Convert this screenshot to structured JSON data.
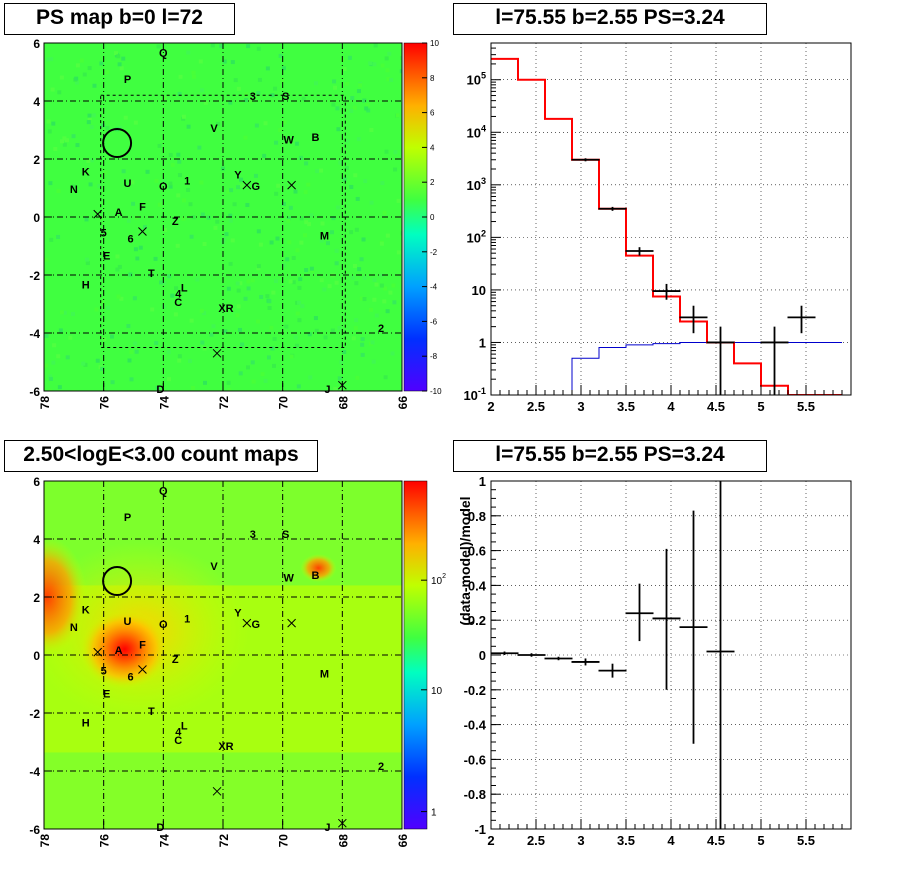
{
  "titles": {
    "map_top": "PS map b=0 l=72",
    "spec_top": "l=75.55 b=2.55 PS=3.24",
    "map_bottom": "2.50<logE<3.00 count maps",
    "ratio_bottom": "l=75.55 b=2.55 PS=3.24"
  },
  "colors": {
    "map_green": "#40ff40",
    "data": "#000000",
    "model": "#ff0000",
    "background_model": "#0000cc",
    "grid": "#000000"
  },
  "sources": [
    {
      "label": "Q",
      "l": 74.0,
      "b": 5.7
    },
    {
      "label": "P",
      "l": 75.2,
      "b": 4.8
    },
    {
      "label": "3",
      "l": 71.0,
      "b": 4.2
    },
    {
      "label": "S",
      "l": 69.9,
      "b": 4.2
    },
    {
      "label": "V",
      "l": 72.3,
      "b": 3.1
    },
    {
      "label": "W",
      "l": 69.8,
      "b": 2.7
    },
    {
      "label": "B",
      "l": 68.9,
      "b": 2.8
    },
    {
      "label": "K",
      "l": 76.6,
      "b": 1.6
    },
    {
      "label": "N",
      "l": 77.0,
      "b": 1.0
    },
    {
      "label": "U",
      "l": 75.2,
      "b": 1.2
    },
    {
      "label": "O",
      "l": 74.0,
      "b": 1.1
    },
    {
      "label": "1",
      "l": 73.2,
      "b": 1.3
    },
    {
      "label": "Y",
      "l": 71.5,
      "b": 1.5
    },
    {
      "label": "G",
      "l": 70.9,
      "b": 1.1
    },
    {
      "label": "F",
      "l": 74.7,
      "b": 0.4
    },
    {
      "label": "A",
      "l": 75.5,
      "b": 0.2
    },
    {
      "label": "Z",
      "l": 73.6,
      "b": -0.1
    },
    {
      "label": "5",
      "l": 76.0,
      "b": -0.5
    },
    {
      "label": "6",
      "l": 75.1,
      "b": -0.7
    },
    {
      "label": "M",
      "l": 68.6,
      "b": -0.6
    },
    {
      "label": "E",
      "l": 75.9,
      "b": -1.3
    },
    {
      "label": "T",
      "l": 74.4,
      "b": -1.9
    },
    {
      "label": "H",
      "l": 76.6,
      "b": -2.3
    },
    {
      "label": "4",
      "l": 73.5,
      "b": -2.6
    },
    {
      "label": "L",
      "l": 73.3,
      "b": -2.4
    },
    {
      "label": "C",
      "l": 73.5,
      "b": -2.9
    },
    {
      "label": "XR",
      "l": 71.9,
      "b": -3.1
    },
    {
      "label": "2",
      "l": 66.7,
      "b": -3.8
    },
    {
      "label": "D",
      "l": 74.1,
      "b": -5.9
    },
    {
      "label": "J",
      "l": 68.5,
      "b": -5.9
    }
  ],
  "crosses": [
    {
      "l": 76.2,
      "b": 0.1
    },
    {
      "l": 74.7,
      "b": -0.5
    },
    {
      "l": 71.2,
      "b": 1.1
    },
    {
      "l": 69.7,
      "b": 1.1
    },
    {
      "l": 72.2,
      "b": -4.7
    },
    {
      "l": 68.0,
      "b": -5.8
    }
  ],
  "circle": {
    "l": 75.55,
    "b": 2.55
  },
  "map_axes": {
    "x_ticks": [
      "78",
      "76",
      "74",
      "72",
      "70",
      "68",
      "66"
    ],
    "y_ticks": [
      "6",
      "4",
      "2",
      "0",
      "-2",
      "-4",
      "-6"
    ]
  },
  "colorbar_top": {
    "range": [
      -10,
      10
    ],
    "ticks": [
      "10",
      "8",
      "6",
      "4",
      "2",
      "0",
      "-2",
      "-4",
      "-6",
      "-8",
      "-10"
    ]
  },
  "colorbar_bottom": {
    "scale": "log",
    "ticks": [
      "10^{2}",
      "10",
      "1"
    ]
  },
  "chart_data": [
    {
      "type": "line",
      "panel": "spectrum",
      "xlim": [
        2,
        6
      ],
      "ylim": [
        0.1,
        500000
      ],
      "yscale": "log",
      "x_ticks": [
        "2",
        "2.5",
        "3",
        "3.5",
        "4",
        "4.5",
        "5",
        "5.5"
      ],
      "y_ticks": [
        "10^{5}",
        "10^{4}",
        "10^{3}",
        "10^{2}",
        "10",
        "1",
        "10^{-1}"
      ],
      "bin_edges": [
        2.0,
        2.3,
        2.6,
        2.9,
        3.2,
        3.5,
        3.8,
        4.1,
        4.4,
        4.7,
        5.0,
        5.3,
        5.6,
        5.9
      ],
      "series": [
        {
          "role": "model",
          "values": [
            250000,
            100000,
            18000,
            3000,
            350,
            45,
            7.5,
            2.5,
            1.0,
            0.4,
            0.15,
            0.1,
            0.1
          ]
        },
        {
          "role": "background_model",
          "values": [
            0.05,
            0.05,
            0.05,
            0.5,
            0.8,
            0.9,
            0.95,
            1.0,
            1.0,
            1.0,
            1.0,
            1.0,
            1.0
          ]
        },
        {
          "role": "data",
          "x": [
            3.05,
            3.35,
            3.65,
            3.95,
            4.25,
            4.55,
            5.15,
            5.45
          ],
          "y": [
            3000,
            350,
            55,
            9.5,
            3.0,
            1.0,
            1.0,
            3.0
          ],
          "y_low": [
            2800,
            320,
            45,
            6.5,
            1.5,
            0.1,
            0.1,
            1.5
          ],
          "y_high": [
            3200,
            380,
            65,
            13,
            5,
            2.0,
            2.0,
            5.0
          ]
        }
      ]
    },
    {
      "type": "scatter",
      "panel": "residual",
      "ylabel": "(data-model)/model",
      "xlim": [
        2,
        6
      ],
      "ylim": [
        -1,
        1
      ],
      "x_ticks": [
        "2",
        "2.5",
        "3",
        "3.5",
        "4",
        "4.5",
        "5",
        "5.5"
      ],
      "y_ticks": [
        "1",
        "0.8",
        "0.6",
        "0.4",
        "0.2",
        "0",
        "-0.2",
        "-0.4",
        "-0.6",
        "-0.8",
        "-1"
      ],
      "points": [
        {
          "x": 2.15,
          "y": 0.01,
          "ylo": 0.0,
          "yhi": 0.02
        },
        {
          "x": 2.45,
          "y": 0.0,
          "ylo": -0.01,
          "yhi": 0.01
        },
        {
          "x": 2.75,
          "y": -0.02,
          "ylo": -0.03,
          "yhi": -0.01
        },
        {
          "x": 3.05,
          "y": -0.04,
          "ylo": -0.06,
          "yhi": -0.02
        },
        {
          "x": 3.35,
          "y": -0.09,
          "ylo": -0.13,
          "yhi": -0.05
        },
        {
          "x": 3.65,
          "y": 0.24,
          "ylo": 0.08,
          "yhi": 0.41
        },
        {
          "x": 3.95,
          "y": 0.21,
          "ylo": -0.2,
          "yhi": 0.61
        },
        {
          "x": 4.25,
          "y": 0.16,
          "ylo": -0.51,
          "yhi": 0.83
        },
        {
          "x": 4.55,
          "y": 0.02,
          "ylo": -1.0,
          "yhi": 1.0
        }
      ]
    }
  ]
}
